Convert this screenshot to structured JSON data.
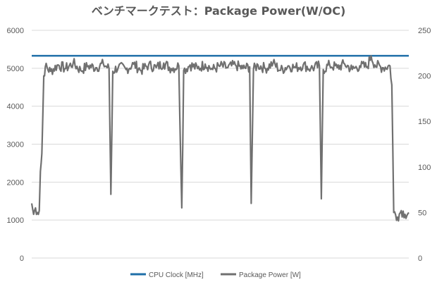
{
  "chart_data": {
    "type": "line",
    "title": "ベンチマークテスト：Package Power(W/OC)",
    "xlabel": "",
    "ylabel": "",
    "y_left": {
      "ylim": [
        0,
        6000
      ],
      "ticks": [
        "0",
        "1000",
        "2000",
        "3000",
        "4000",
        "5000",
        "6000"
      ]
    },
    "y_right": {
      "ylim": [
        0,
        250
      ],
      "ticks": [
        "0",
        "50",
        "100",
        "150",
        "200",
        "250"
      ]
    },
    "grid": true,
    "legend_position": "bottom",
    "x_range": [
      0,
      100
    ],
    "series": [
      {
        "name": "CPU Clock [MHz]",
        "axis": "left",
        "color": "#1f6fa8",
        "values": [
          [
            0,
            5330
          ],
          [
            100,
            5330
          ]
        ]
      },
      {
        "name": "Package Power [W]",
        "axis": "right",
        "color": "#707070",
        "values": [
          [
            0,
            60
          ],
          [
            0.5,
            48
          ],
          [
            1,
            55
          ],
          [
            1.5,
            50
          ],
          [
            2,
            52
          ],
          [
            2.3,
            95
          ],
          [
            2.7,
            115
          ],
          [
            3.2,
            200
          ],
          [
            3.6,
            210
          ],
          [
            5,
            205
          ],
          [
            7,
            212
          ],
          [
            9,
            208
          ],
          [
            11,
            214
          ],
          [
            13,
            206
          ],
          [
            15,
            211
          ],
          [
            17,
            209
          ],
          [
            19,
            213
          ],
          [
            20.5,
            208
          ],
          [
            21,
            70
          ],
          [
            21.5,
            205
          ],
          [
            23,
            210
          ],
          [
            25,
            207
          ],
          [
            27,
            213
          ],
          [
            29,
            206
          ],
          [
            31,
            212
          ],
          [
            33,
            209
          ],
          [
            35,
            214
          ],
          [
            37,
            208
          ],
          [
            39,
            211
          ],
          [
            39.8,
            55
          ],
          [
            40.3,
            206
          ],
          [
            42,
            212
          ],
          [
            44,
            208
          ],
          [
            46,
            213
          ],
          [
            48,
            207
          ],
          [
            50,
            211
          ],
          [
            52,
            209
          ],
          [
            54,
            212
          ],
          [
            56,
            208
          ],
          [
            57.8,
            210
          ],
          [
            58.2,
            60
          ],
          [
            58.8,
            207
          ],
          [
            60,
            212
          ],
          [
            62,
            208
          ],
          [
            64,
            214
          ],
          [
            66,
            206
          ],
          [
            68,
            211
          ],
          [
            70,
            209
          ],
          [
            72,
            212
          ],
          [
            74,
            208
          ],
          [
            76.3,
            211
          ],
          [
            76.8,
            65
          ],
          [
            77.3,
            207
          ],
          [
            79,
            212
          ],
          [
            81,
            209
          ],
          [
            83,
            213
          ],
          [
            85,
            207
          ],
          [
            87,
            211
          ],
          [
            89,
            210
          ],
          [
            90,
            222
          ],
          [
            91,
            212
          ],
          [
            93,
            209
          ],
          [
            95,
            211
          ],
          [
            95.5,
            190
          ],
          [
            96,
            50
          ],
          [
            97,
            45
          ],
          [
            98,
            52
          ],
          [
            99,
            48
          ],
          [
            100,
            50
          ]
        ]
      }
    ]
  }
}
